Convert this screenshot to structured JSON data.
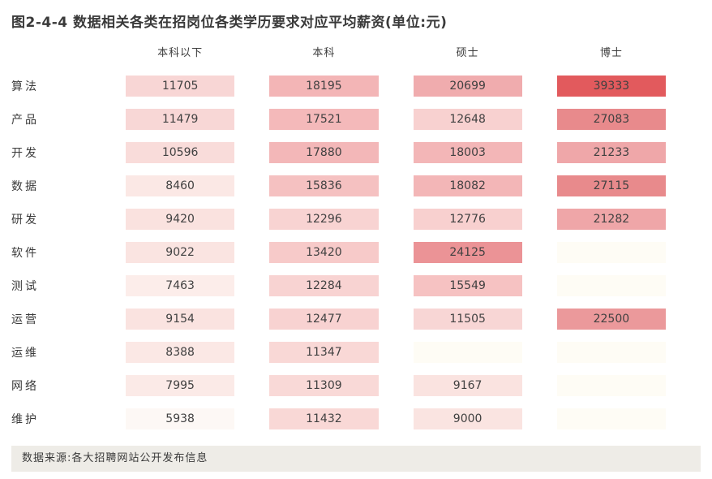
{
  "title": "图2-4-4 数据相关各类在招岗位各类学历要求对应平均薪资(单位:元)",
  "footer": {
    "source": "数据来源:各大招聘网站公开发布信息"
  },
  "colors": {
    "scale_min": "#fefcf5",
    "scale_max": "#e25a5d",
    "footer_bg": "#eeece7",
    "text": "#3a3a3a"
  },
  "chart_data": {
    "type": "heatmap",
    "title": "图2-4-4 数据相关各类在招岗位各类学历要求对应平均薪资(单位:元)",
    "unit": "元",
    "legend_position": "none",
    "grid": false,
    "columns": [
      "本科以下",
      "本科",
      "硕士",
      "博士"
    ],
    "value_range": [
      0,
      39333
    ],
    "rows": [
      {
        "label": "算法",
        "values": [
          11705,
          18195,
          20699,
          39333
        ],
        "colors": [
          "#f8d6d5",
          "#f3b5b6",
          "#f0acae",
          "#e25a5d"
        ]
      },
      {
        "label": "产品",
        "values": [
          11479,
          17521,
          12648,
          27083
        ],
        "colors": [
          "#f8d7d6",
          "#f4b9ba",
          "#f8d1d0",
          "#e88a8c"
        ]
      },
      {
        "label": "开发",
        "values": [
          10596,
          17880,
          18003,
          21233
        ],
        "colors": [
          "#f9dcda",
          "#f3b7b8",
          "#f3b6b7",
          "#efa7a9"
        ]
      },
      {
        "label": "数据",
        "values": [
          8460,
          15836,
          18082,
          27115
        ],
        "colors": [
          "#fbe8e5",
          "#f5c1c1",
          "#f3b6b7",
          "#e88a8c"
        ]
      },
      {
        "label": "研发",
        "values": [
          9420,
          12296,
          12776,
          21282
        ],
        "colors": [
          "#fae2df",
          "#f8d3d2",
          "#f8d0cf",
          "#efa6a8"
        ]
      },
      {
        "label": "软件",
        "values": [
          9022,
          13420,
          24125,
          null
        ],
        "colors": [
          "#fae4e1",
          "#f7cac9",
          "#eb9396",
          "#fefcf5"
        ]
      },
      {
        "label": "测试",
        "values": [
          7463,
          12284,
          15549,
          null
        ],
        "colors": [
          "#fcedea",
          "#f8d3d2",
          "#f6c2c2",
          "#fefcf5"
        ]
      },
      {
        "label": "运营",
        "values": [
          9154,
          12477,
          11505,
          22500
        ],
        "colors": [
          "#fae3e0",
          "#f8d2d1",
          "#f8d6d5",
          "#eb999b"
        ]
      },
      {
        "label": "运维",
        "values": [
          8388,
          11347,
          null,
          null
        ],
        "colors": [
          "#fbe8e5",
          "#f9d8d6",
          "#fefcf5",
          "#fefcf5"
        ]
      },
      {
        "label": "网络",
        "values": [
          7995,
          11309,
          9167,
          null
        ],
        "colors": [
          "#fbeae7",
          "#f9d9d7",
          "#fae3e0",
          "#fefcf5"
        ]
      },
      {
        "label": "维护",
        "values": [
          5938,
          11432,
          9000,
          null
        ],
        "colors": [
          "#fdf8f5",
          "#f9d8d6",
          "#fae4e1",
          "#fefcf5"
        ]
      }
    ]
  }
}
